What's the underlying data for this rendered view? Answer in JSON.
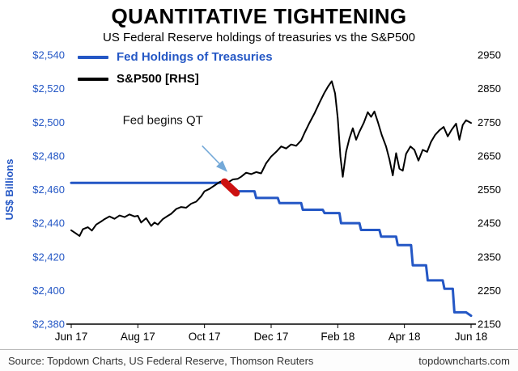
{
  "chart_data": {
    "type": "line",
    "title": "QUANTITATIVE TIGHTENING",
    "subtitle": "US Federal Reserve holdings of treasuries vs the S&P500",
    "grid": false,
    "legend_position": "top-left",
    "left_axis": {
      "label": "US$ Billions",
      "min": 2380,
      "max": 2540,
      "tick_step": 20,
      "tick_labels": [
        "$2,380",
        "$2,400",
        "$2,420",
        "$2,440",
        "$2,460",
        "$2,480",
        "$2,500",
        "$2,520",
        "$2,540"
      ],
      "color": "#2457c5"
    },
    "right_axis": {
      "min": 2150,
      "max": 2950,
      "tick_step": 100,
      "tick_labels": [
        "2150",
        "2250",
        "2350",
        "2450",
        "2550",
        "2650",
        "2750",
        "2850",
        "2950"
      ],
      "color": "#000000"
    },
    "x_axis": {
      "min": 0,
      "max": 12,
      "tick_positions": [
        0,
        2,
        4,
        6,
        8,
        10,
        12
      ],
      "tick_labels": [
        "Jun 17",
        "Aug 17",
        "Oct 17",
        "Dec 17",
        "Feb 18",
        "Apr 18",
        "Jun 18"
      ]
    },
    "series": [
      {
        "name": "Fed Holdings of Treasuries",
        "axis": "left",
        "color": "#2457c5",
        "width": 3,
        "points": [
          [
            0,
            2464
          ],
          [
            4.6,
            2464
          ],
          [
            4.95,
            2459
          ],
          [
            5.5,
            2459
          ],
          [
            5.55,
            2455
          ],
          [
            6.2,
            2455
          ],
          [
            6.25,
            2452
          ],
          [
            6.9,
            2452
          ],
          [
            6.95,
            2448
          ],
          [
            7.55,
            2448
          ],
          [
            7.6,
            2446
          ],
          [
            8.05,
            2446
          ],
          [
            8.1,
            2440
          ],
          [
            8.65,
            2440
          ],
          [
            8.7,
            2436
          ],
          [
            9.25,
            2436
          ],
          [
            9.3,
            2432
          ],
          [
            9.75,
            2432
          ],
          [
            9.8,
            2427
          ],
          [
            10.2,
            2427
          ],
          [
            10.25,
            2415
          ],
          [
            10.65,
            2415
          ],
          [
            10.7,
            2406
          ],
          [
            11.15,
            2406
          ],
          [
            11.2,
            2401
          ],
          [
            11.45,
            2401
          ],
          [
            11.5,
            2387
          ],
          [
            11.85,
            2387
          ],
          [
            12,
            2385
          ]
        ]
      },
      {
        "name": "S&P500 [RHS]",
        "axis": "right",
        "color": "#000000",
        "width": 2,
        "points": [
          [
            0,
            2429
          ],
          [
            0.12,
            2421
          ],
          [
            0.25,
            2412
          ],
          [
            0.35,
            2432
          ],
          [
            0.5,
            2438
          ],
          [
            0.62,
            2428
          ],
          [
            0.75,
            2446
          ],
          [
            0.9,
            2455
          ],
          [
            1,
            2462
          ],
          [
            1.15,
            2470
          ],
          [
            1.3,
            2463
          ],
          [
            1.45,
            2473
          ],
          [
            1.6,
            2468
          ],
          [
            1.75,
            2476
          ],
          [
            1.9,
            2470
          ],
          [
            2,
            2472
          ],
          [
            2.1,
            2452
          ],
          [
            2.25,
            2465
          ],
          [
            2.4,
            2442
          ],
          [
            2.5,
            2452
          ],
          [
            2.6,
            2446
          ],
          [
            2.75,
            2462
          ],
          [
            2.9,
            2472
          ],
          [
            3,
            2478
          ],
          [
            3.15,
            2492
          ],
          [
            3.3,
            2498
          ],
          [
            3.45,
            2496
          ],
          [
            3.6,
            2508
          ],
          [
            3.75,
            2514
          ],
          [
            3.9,
            2530
          ],
          [
            4,
            2545
          ],
          [
            4.15,
            2552
          ],
          [
            4.3,
            2562
          ],
          [
            4.45,
            2572
          ],
          [
            4.6,
            2578
          ],
          [
            4.72,
            2572
          ],
          [
            4.85,
            2580
          ],
          [
            5,
            2582
          ],
          [
            5.1,
            2588
          ],
          [
            5.25,
            2600
          ],
          [
            5.4,
            2596
          ],
          [
            5.55,
            2602
          ],
          [
            5.7,
            2598
          ],
          [
            5.85,
            2628
          ],
          [
            6,
            2648
          ],
          [
            6.15,
            2662
          ],
          [
            6.3,
            2678
          ],
          [
            6.45,
            2672
          ],
          [
            6.6,
            2684
          ],
          [
            6.75,
            2680
          ],
          [
            6.9,
            2696
          ],
          [
            7,
            2718
          ],
          [
            7.15,
            2748
          ],
          [
            7.3,
            2776
          ],
          [
            7.45,
            2808
          ],
          [
            7.6,
            2838
          ],
          [
            7.72,
            2858
          ],
          [
            7.82,
            2872
          ],
          [
            7.92,
            2836
          ],
          [
            8,
            2762
          ],
          [
            8.08,
            2648
          ],
          [
            8.15,
            2588
          ],
          [
            8.25,
            2662
          ],
          [
            8.35,
            2702
          ],
          [
            8.45,
            2732
          ],
          [
            8.55,
            2698
          ],
          [
            8.65,
            2722
          ],
          [
            8.78,
            2748
          ],
          [
            8.9,
            2780
          ],
          [
            9,
            2766
          ],
          [
            9.1,
            2782
          ],
          [
            9.2,
            2752
          ],
          [
            9.32,
            2712
          ],
          [
            9.45,
            2678
          ],
          [
            9.55,
            2640
          ],
          [
            9.65,
            2592
          ],
          [
            9.75,
            2658
          ],
          [
            9.85,
            2612
          ],
          [
            9.95,
            2606
          ],
          [
            10.05,
            2656
          ],
          [
            10.18,
            2678
          ],
          [
            10.3,
            2668
          ],
          [
            10.42,
            2636
          ],
          [
            10.55,
            2668
          ],
          [
            10.68,
            2662
          ],
          [
            10.8,
            2692
          ],
          [
            10.92,
            2712
          ],
          [
            11.05,
            2726
          ],
          [
            11.18,
            2736
          ],
          [
            11.3,
            2708
          ],
          [
            11.42,
            2728
          ],
          [
            11.55,
            2746
          ],
          [
            11.65,
            2698
          ],
          [
            11.75,
            2742
          ],
          [
            11.85,
            2756
          ],
          [
            12,
            2748
          ]
        ]
      }
    ],
    "annotation": {
      "text": "Fed begins QT",
      "text_pos": [
        2.75,
        2499
      ],
      "arrow_from": [
        3.93,
        2486
      ],
      "arrow_to": [
        4.66,
        2471
      ],
      "arrow_color": "#74a9d8",
      "highlight_segment": [
        [
          4.6,
          2464.5
        ],
        [
          4.95,
          2458
        ]
      ],
      "highlight_color": "#cc1111"
    }
  },
  "footer": {
    "source": "Source: Topdown Charts, US Federal Reserve, Thomson Reuters",
    "website": "topdowncharts.com"
  }
}
